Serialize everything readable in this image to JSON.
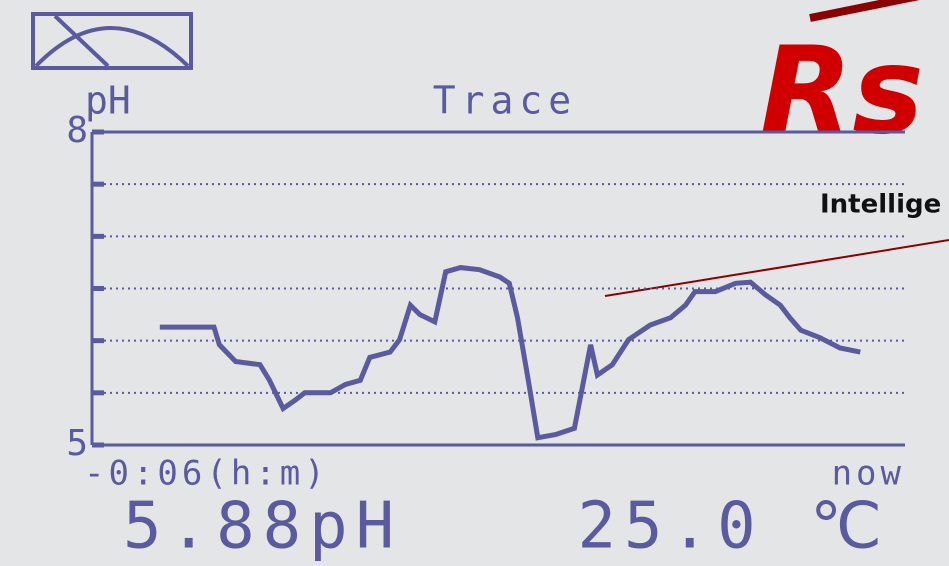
{
  "chart_data": {
    "type": "line",
    "title": "Trace",
    "y_label": "pH",
    "x": [
      -5.5,
      -5.1,
      -5.06,
      -4.94,
      -4.76,
      -4.69,
      -4.59,
      -4.5,
      -4.43,
      -4.24,
      -4.13,
      -4.02,
      -3.95,
      -3.8,
      -3.73,
      -3.65,
      -3.58,
      -3.47,
      -3.39,
      -3.28,
      -3.14,
      -2.99,
      -2.92,
      -2.86,
      -2.78,
      -2.71,
      -2.58,
      -2.44,
      -2.32,
      -2.27,
      -2.16,
      -2.04,
      -1.88,
      -1.73,
      -1.62,
      -1.55,
      -1.4,
      -1.25,
      -1.14,
      -1.03,
      -0.92,
      -0.85,
      -0.77,
      -0.63,
      -0.48,
      -0.33
    ],
    "values": [
      6.13,
      6.13,
      5.96,
      5.8,
      5.77,
      5.62,
      5.35,
      5.43,
      5.5,
      5.5,
      5.58,
      5.62,
      5.84,
      5.89,
      6.01,
      6.34,
      6.25,
      6.18,
      6.66,
      6.7,
      6.68,
      6.61,
      6.55,
      6.22,
      5.62,
      5.07,
      5.1,
      5.16,
      5.96,
      5.67,
      5.77,
      6.01,
      6.15,
      6.22,
      6.34,
      6.47,
      6.47,
      6.55,
      6.56,
      6.44,
      6.34,
      6.22,
      6.1,
      6.03,
      5.93,
      5.89
    ],
    "color": "#5a5a9e",
    "xlim": [
      -6,
      0
    ],
    "xticks": [
      {
        "value": -6,
        "label": "-0:06(h:m)"
      },
      {
        "value": 0,
        "label": "now"
      }
    ],
    "ylim": [
      5,
      8
    ],
    "yticks": [
      5,
      8
    ],
    "minor_yticks": [
      5.5,
      6,
      6.5,
      7,
      7.5
    ],
    "grid": true,
    "readings": [
      "5.88pH",
      "25.0 ℃"
    ]
  },
  "logo": {
    "mark": "Rs",
    "tagline": "Intellige"
  }
}
